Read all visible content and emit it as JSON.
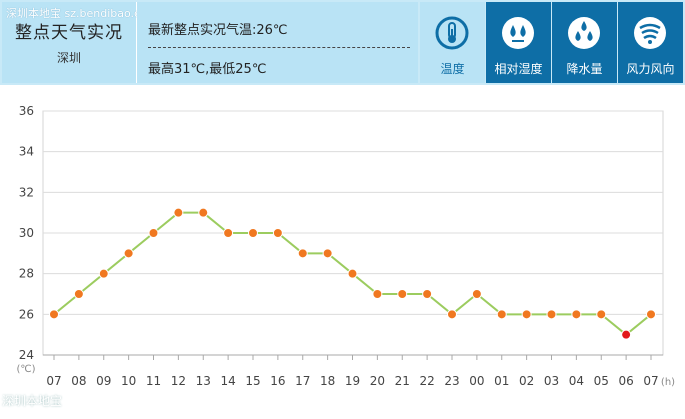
{
  "header": {
    "watermark": "深圳本地宝  sz.bendibao.com",
    "title": "整点天气实况",
    "city": "深圳",
    "latest_temp": "最新整点实况气温:26℃",
    "high_low": "最高31℃,最低25℃"
  },
  "tabs": [
    {
      "label": "温度",
      "icon": "thermometer-icon",
      "active": true
    },
    {
      "label": "相对湿度",
      "icon": "humidity-icon",
      "active": false
    },
    {
      "label": "降水量",
      "icon": "rain-drops-icon",
      "active": false
    },
    {
      "label": "风力风向",
      "icon": "wind-icon",
      "active": false
    }
  ],
  "colors": {
    "accent": "#0e6ea6",
    "header_bg": "#c8e9f7",
    "line": "#9ccc5f",
    "point": "#f07820",
    "min_point": "#e21a1a"
  },
  "chart_data": {
    "type": "line",
    "categories": [
      "07",
      "08",
      "09",
      "10",
      "11",
      "12",
      "13",
      "14",
      "15",
      "16",
      "17",
      "18",
      "19",
      "20",
      "21",
      "22",
      "23",
      "00",
      "01",
      "02",
      "03",
      "04",
      "05",
      "06",
      "07"
    ],
    "values": [
      26,
      27,
      28,
      29,
      30,
      31,
      31,
      30,
      30,
      30,
      29,
      29,
      28,
      27,
      27,
      27,
      26,
      27,
      26,
      26,
      26,
      26,
      26,
      25,
      26
    ],
    "y_ticks": [
      "36",
      "34",
      "32",
      "30",
      "28",
      "26",
      "24"
    ],
    "ylim": [
      24,
      36
    ],
    "y_unit": "(℃)",
    "x_unit": "(h)",
    "grid": true,
    "min_index": 23
  },
  "footer": {
    "watermark": "深圳本地宝"
  }
}
